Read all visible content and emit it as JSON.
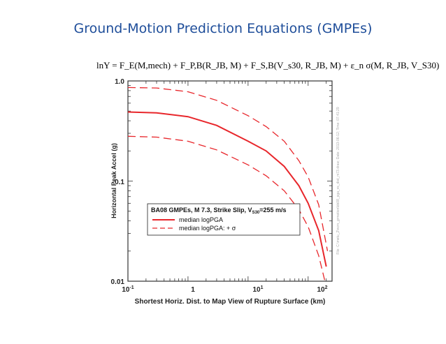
{
  "slide": {
    "title": "Ground-Motion Prediction Equations (GMPEs)",
    "equation": "lnY = F_E(M,mech) + F_P,B(R_JB, M) + F_S,B(V_s30, R_JB, M) + ε_n σ(M, R_JB, V_S30)"
  },
  "chart_data": {
    "type": "line",
    "xscale": "log",
    "yscale": "log",
    "xlim": [
      0.1,
      250
    ],
    "ylim": [
      0.01,
      1.0
    ],
    "xticks": [
      "10-1",
      "1",
      "101",
      "102"
    ],
    "yticks": [
      "1.0",
      "0.1",
      "0.01"
    ],
    "xlabel": "Shortest Horiz. Dist. to Map View of Rupture Surface (km)",
    "ylabel": "Horizontal Peak Accel (g)",
    "side_note": "File: C:\\metu_2\\ncm_grmotion\\bb08_pga_vs_dist_m73.draw; Date: 2013-06-12; Time: 07:41:29",
    "legend": {
      "title": "BA08 GMPEs, M 7.3, Strike Slip, VS30=255 m/s",
      "entries": [
        "median logPGA",
        "median logPGA: + σ"
      ]
    },
    "colors": {
      "curve": "#e8262b",
      "frame": "#333333"
    },
    "series": [
      {
        "name": "median logPGA",
        "style": "solid",
        "x": [
          0.1,
          0.3,
          1,
          3,
          10,
          20,
          40,
          70,
          100,
          150,
          200
        ],
        "y": [
          0.49,
          0.48,
          0.44,
          0.36,
          0.25,
          0.2,
          0.14,
          0.09,
          0.06,
          0.032,
          0.014
        ]
      },
      {
        "name": "median logPGA: + σ",
        "style": "dashed",
        "x": [
          0.1,
          0.3,
          1,
          3,
          10,
          20,
          40,
          70,
          100,
          150,
          210
        ],
        "y": [
          0.86,
          0.85,
          0.78,
          0.64,
          0.45,
          0.35,
          0.25,
          0.16,
          0.11,
          0.058,
          0.02
        ]
      },
      {
        "name": "median logPGA: - σ",
        "style": "dashed",
        "x": [
          0.1,
          0.3,
          1,
          3,
          10,
          20,
          40,
          70,
          100,
          150,
          190
        ],
        "y": [
          0.28,
          0.275,
          0.25,
          0.205,
          0.145,
          0.113,
          0.08,
          0.052,
          0.035,
          0.018,
          0.01
        ]
      }
    ]
  }
}
